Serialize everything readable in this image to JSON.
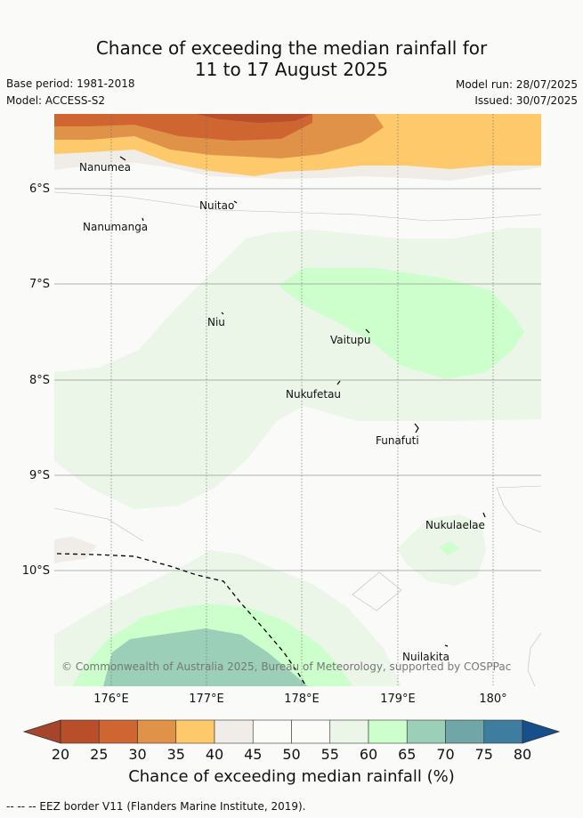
{
  "title": {
    "line1": "Chance of exceeding the median rainfall for",
    "line2": "11 to 17 August 2025"
  },
  "meta": {
    "base_period": "Base period: 1981-2018",
    "model": "Model: ACCESS-S2",
    "model_run": "Model run: 28/07/2025",
    "issued": "Issued: 30/07/2025"
  },
  "map": {
    "lat_labels": [
      "6°S",
      "7°S",
      "8°S",
      "9°S",
      "10°S"
    ],
    "lon_labels": [
      "176°E",
      "177°E",
      "178°E",
      "179°E",
      "180°"
    ],
    "islands": [
      "Nanumea",
      "Nuitao",
      "Nanumanga",
      "Niu",
      "Vaitupu",
      "Nukufetau",
      "Funafuti",
      "Nukulaelae",
      "Nuilakita"
    ],
    "copyright": "© Commonwealth of Australia 2025, Bureau of Meteorology, supported by COSPPac"
  },
  "colorbar": {
    "title": "Chance of exceeding median rainfall (%)",
    "ticks": [
      "20",
      "25",
      "30",
      "35",
      "40",
      "45",
      "50",
      "55",
      "60",
      "65",
      "70",
      "75",
      "80"
    ],
    "colors": [
      "#a8442a",
      "#b84e2a",
      "#cf6632",
      "#e09248",
      "#fdc96a",
      "#f0ece8",
      "#fbfbf8",
      "#fbfbf8",
      "#ebf5e8",
      "#ccffcc",
      "#9ccfb8",
      "#70a6a8",
      "#3f7da0",
      "#174e8c"
    ]
  },
  "footer": {
    "eez_note": "-- -- -- EEZ border V11 (Flanders Marine Institute, 2019)."
  }
}
